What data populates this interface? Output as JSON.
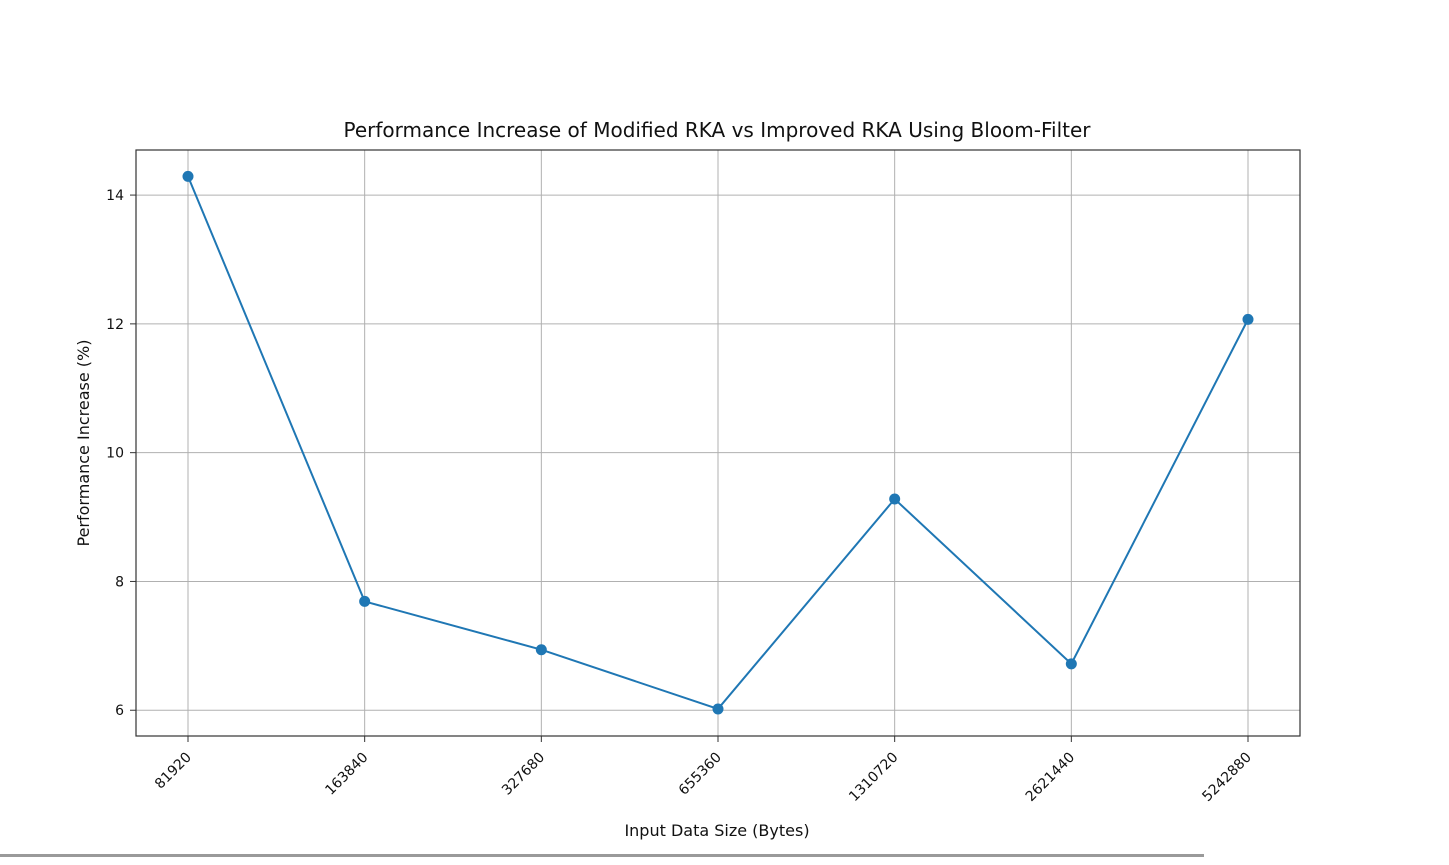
{
  "chart_data": {
    "type": "line",
    "title": "Performance Increase of Modified RKA vs Improved RKA Using Bloom-Filter",
    "xlabel": "Input Data Size (Bytes)",
    "ylabel": "Performance Increase (%)",
    "categories": [
      "81920",
      "163840",
      "327680",
      "655360",
      "1310720",
      "2621440",
      "5242880"
    ],
    "series": [
      {
        "values": [
          14.29,
          7.69,
          6.94,
          6.02,
          9.28,
          6.72,
          12.07
        ]
      }
    ],
    "yticks": [
      6,
      8,
      10,
      12,
      14
    ],
    "ylim": [
      5.6,
      14.7
    ],
    "grid": true,
    "marker": "circle",
    "colors": {
      "line": "#1f77b4",
      "grid": "#b0b0b0",
      "axes": "#333333"
    }
  }
}
